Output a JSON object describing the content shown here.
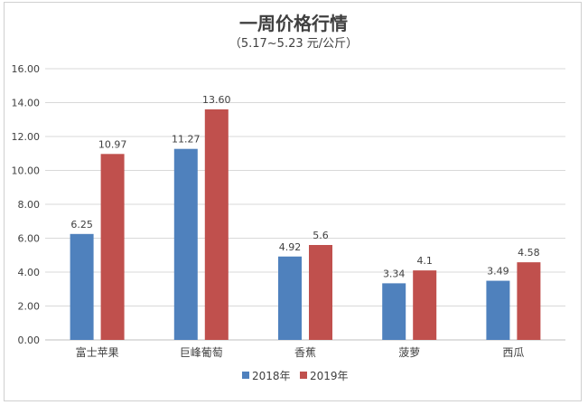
{
  "chart_data": {
    "type": "bar",
    "title": "一周价格行情",
    "subtitle": "（5.17~5.23 元/公斤）",
    "categories": [
      "富士苹果",
      "巨峰葡萄",
      "香蕉",
      "菠萝",
      "西瓜"
    ],
    "series": [
      {
        "name": "2018年",
        "color": "#4f81bd",
        "values": [
          6.25,
          11.27,
          4.92,
          3.34,
          3.49
        ],
        "labels": [
          "6.25",
          "11.27",
          "4.92",
          "3.34",
          "3.49"
        ]
      },
      {
        "name": "2019年",
        "color": "#c0504d",
        "values": [
          10.97,
          13.6,
          5.6,
          4.1,
          4.58
        ],
        "labels": [
          "10.97",
          "13.60",
          "5.6",
          "4.1",
          "4.58"
        ]
      }
    ],
    "ylim": [
      0,
      16
    ],
    "yticks": [
      "0.00",
      "2.00",
      "4.00",
      "6.00",
      "8.00",
      "10.00",
      "12.00",
      "14.00",
      "16.00"
    ],
    "grid": true,
    "legend_position": "bottom"
  }
}
